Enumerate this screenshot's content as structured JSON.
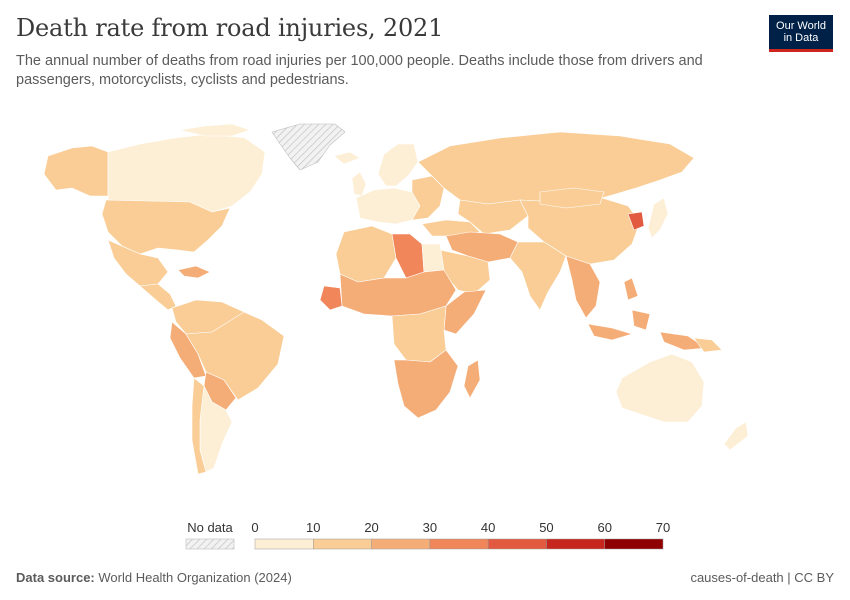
{
  "header": {
    "title": "Death rate from road injuries, 2021",
    "subtitle": "The annual number of deaths from road injuries per 100,000 people. Deaths include those from drivers and passengers, motorcyclists, cyclists and pedestrians."
  },
  "logo": {
    "line1": "Our World",
    "line2": "in Data"
  },
  "legend": {
    "no_data_label": "No data",
    "ticks": [
      "0",
      "10",
      "20",
      "30",
      "40",
      "50",
      "60",
      "70"
    ],
    "bin_colors": [
      "#fdefd6",
      "#f9cd95",
      "#f5ad78",
      "#f0865a",
      "#e25a3f",
      "#c7261e",
      "#8f0000"
    ],
    "no_data_color": "#e8e8e8"
  },
  "footer": {
    "source_label": "Data source:",
    "source_value": "World Health Organization (2024)",
    "right_text": "causes-of-death | CC BY"
  },
  "colors": {
    "border": "#ffffff",
    "outline": "#bdbdbd"
  }
}
